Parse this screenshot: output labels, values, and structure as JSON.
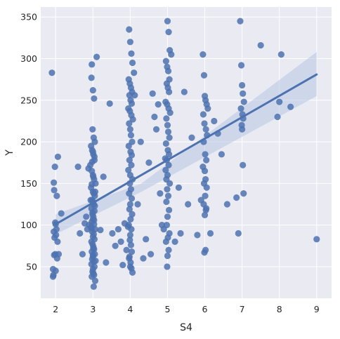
{
  "chart_data": {
    "type": "scatter",
    "title": "",
    "xlabel": "S4",
    "ylabel": "Y",
    "xlim": [
      1.6,
      9.4
    ],
    "ylim": [
      12,
      362
    ],
    "xticks": [
      2,
      3,
      4,
      5,
      6,
      7,
      8,
      9
    ],
    "yticks": [
      50,
      100,
      150,
      200,
      250,
      300,
      350
    ],
    "grid": true,
    "legend": "none",
    "colors": {
      "points": "#4c72b0",
      "line": "#4c72b0",
      "band": "#b7c6e4",
      "plot_bg": "#eaeaf2",
      "grid": "#ffffff"
    },
    "regression": {
      "x": [
        2,
        9
      ],
      "y": [
        101,
        281
      ],
      "ci_upper": [
        113,
        308
      ],
      "ci_lower": [
        89,
        255
      ],
      "ci_mid_x": 4.3,
      "ci_mid_upper": 150,
      "ci_mid_lower": 140
    },
    "x": [
      1.9,
      1.93,
      1.96,
      2.0,
      1.95,
      1.98,
      2.03,
      2.06,
      1.95,
      2.0,
      1.97,
      2.02,
      1.99,
      2.04,
      1.94,
      2.01,
      1.96,
      2.05,
      1.93,
      1.99,
      2.08,
      2.15,
      2.6,
      2.65,
      2.72,
      2.78,
      2.82,
      2.85,
      2.88,
      2.9,
      2.94,
      2.97,
      3.0,
      3.03,
      3.06,
      3.1,
      2.96,
      2.99,
      3.02,
      3.05,
      2.98,
      3.01,
      3.04,
      2.93,
      2.97,
      3.0,
      3.03,
      3.07,
      2.95,
      3.0,
      3.05,
      2.98,
      3.02,
      2.96,
      3.04,
      2.99,
      3.01,
      3.0,
      2.97,
      3.03,
      2.95,
      3.06,
      2.98,
      3.02,
      3.0,
      3.04,
      2.96,
      2.99,
      3.01,
      3.03,
      2.97,
      3.05,
      3.0,
      2.98,
      3.02,
      2.96,
      3.04,
      3.0,
      2.99,
      3.01,
      3.03,
      2.97,
      3.06,
      3.02,
      2.95,
      3.0,
      3.04,
      2.98,
      3.01,
      2.97,
      3.02,
      3.0,
      3.05,
      2.99,
      3.03,
      2.96,
      3.01,
      3.0,
      3.07,
      3.2,
      3.28,
      3.35,
      3.45,
      3.52,
      3.6,
      3.68,
      3.75,
      3.8,
      3.85,
      3.9,
      3.94,
      3.97,
      4.0,
      4.03,
      4.06,
      4.1,
      3.96,
      3.99,
      4.02,
      4.05,
      3.98,
      4.01,
      4.04,
      3.95,
      3.99,
      4.03,
      4.07,
      3.97,
      4.0,
      4.02,
      4.05,
      3.96,
      4.01,
      4.04,
      3.98,
      4.03,
      3.95,
      4.0,
      4.06,
      3.99,
      4.02,
      3.97,
      4.04,
      4.0,
      3.98,
      4.05,
      4.01,
      3.96,
      4.03,
      4.0,
      3.99,
      4.02,
      4.04,
      3.97,
      4.01,
      4.0,
      4.06,
      3.98,
      4.03,
      4.12,
      4.2,
      4.28,
      4.35,
      4.42,
      4.5,
      4.55,
      4.6,
      4.65,
      4.7,
      4.75,
      4.8,
      4.85,
      4.9,
      4.94,
      4.97,
      5.0,
      5.03,
      5.06,
      5.1,
      4.96,
      4.99,
      5.02,
      5.05,
      4.98,
      5.01,
      5.04,
      4.95,
      4.99,
      5.03,
      5.07,
      4.97,
      5.0,
      5.02,
      5.05,
      4.96,
      5.01,
      5.04,
      4.98,
      5.03,
      4.95,
      5.0,
      5.06,
      4.99,
      5.02,
      4.97,
      5.04,
      5.0,
      4.98,
      5.05,
      5.01,
      4.96,
      5.03,
      5.0,
      4.99,
      5.2,
      5.3,
      5.35,
      5.45,
      5.55,
      5.65,
      5.8,
      5.9,
      5.95,
      5.98,
      6.0,
      6.02,
      6.05,
      6.08,
      5.96,
      5.99,
      6.03,
      6.06,
      5.97,
      6.01,
      6.04,
      5.95,
      6.0,
      6.02,
      5.98,
      6.05,
      6.01,
      5.97,
      6.03,
      6.0,
      6.02,
      5.99,
      6.04,
      6.15,
      6.25,
      6.35,
      6.45,
      6.6,
      6.85,
      6.9,
      6.95,
      6.98,
      7.0,
      7.02,
      7.05,
      6.97,
      7.01,
      7.03,
      6.99,
      7.0,
      7.02,
      7.04,
      7.5,
      7.95,
      8.0,
      8.05,
      8.3,
      9.0
    ],
    "y": [
      283,
      38,
      64,
      45,
      151,
      170,
      135,
      182,
      92,
      101,
      85,
      95,
      65,
      60,
      40,
      88,
      142,
      80,
      47,
      103,
      65,
      114,
      170,
      90,
      65,
      102,
      110,
      95,
      168,
      100,
      130,
      293,
      262,
      252,
      140,
      302,
      277,
      215,
      205,
      200,
      190,
      185,
      178,
      172,
      165,
      160,
      155,
      150,
      145,
      140,
      135,
      130,
      125,
      120,
      117,
      113,
      110,
      107,
      104,
      101,
      98,
      95,
      92,
      89,
      86,
      83,
      80,
      77,
      74,
      71,
      68,
      65,
      62,
      59,
      56,
      53,
      50,
      47,
      44,
      42,
      40,
      38,
      33,
      26,
      195,
      188,
      182,
      176,
      158,
      149,
      138,
      128,
      123,
      115,
      106,
      96,
      72,
      64,
      57,
      94,
      158,
      55,
      246,
      90,
      75,
      95,
      80,
      52,
      102,
      70,
      98,
      335,
      320,
      306,
      295,
      283,
      275,
      270,
      265,
      260,
      256,
      250,
      246,
      240,
      237,
      232,
      227,
      222,
      215,
      208,
      200,
      195,
      188,
      184,
      178,
      172,
      166,
      160,
      155,
      150,
      143,
      138,
      132,
      125,
      119,
      113,
      107,
      100,
      95,
      88,
      82,
      76,
      68,
      60,
      55,
      50,
      43,
      62,
      48,
      256,
      125,
      200,
      60,
      83,
      175,
      65,
      258,
      230,
      215,
      245,
      138,
      100,
      95,
      180,
      155,
      345,
      332,
      310,
      305,
      297,
      290,
      285,
      275,
      270,
      265,
      260,
      248,
      245,
      240,
      235,
      228,
      220,
      212,
      205,
      198,
      190,
      185,
      178,
      172,
      166,
      160,
      150,
      143,
      135,
      128,
      118,
      110,
      100,
      90,
      85,
      80,
      70,
      63,
      50,
      80,
      145,
      90,
      260,
      125,
      205,
      88,
      130,
      305,
      280,
      255,
      250,
      245,
      240,
      233,
      222,
      215,
      208,
      200,
      185,
      178,
      170,
      165,
      155,
      150,
      145,
      135,
      125,
      118,
      112,
      70,
      67,
      120,
      90,
      225,
      210,
      185,
      125,
      133,
      90,
      345,
      292,
      268,
      258,
      248,
      240,
      233,
      228,
      220,
      215,
      172,
      138,
      316,
      230,
      248,
      305,
      242,
      83
    ]
  }
}
